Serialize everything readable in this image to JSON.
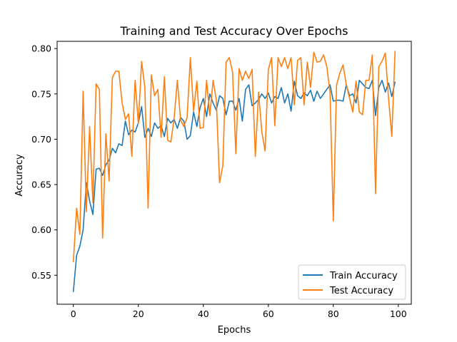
{
  "chart_data": {
    "type": "line",
    "title": "Training and Test Accuracy Over Epochs",
    "xlabel": "Epochs",
    "ylabel": "Accuracy",
    "xlim": [
      -5,
      104
    ],
    "ylim": [
      0.518,
      0.808
    ],
    "xticks": [
      0,
      20,
      40,
      60,
      80,
      100
    ],
    "yticks": [
      0.55,
      0.6,
      0.65,
      0.7,
      0.75,
      0.8
    ],
    "ytick_labels": [
      "0.55",
      "0.60",
      "0.65",
      "0.70",
      "0.75",
      "0.80"
    ],
    "grid": false,
    "legend_position": "lower-right",
    "x": [
      0,
      1,
      2,
      3,
      4,
      5,
      6,
      7,
      8,
      9,
      10,
      11,
      12,
      13,
      14,
      15,
      16,
      17,
      18,
      19,
      20,
      21,
      22,
      23,
      24,
      25,
      26,
      27,
      28,
      29,
      30,
      31,
      32,
      33,
      34,
      35,
      36,
      37,
      38,
      39,
      40,
      41,
      42,
      43,
      44,
      45,
      46,
      47,
      48,
      49,
      50,
      51,
      52,
      53,
      54,
      55,
      56,
      57,
      58,
      59,
      60,
      61,
      62,
      63,
      64,
      65,
      66,
      67,
      68,
      69,
      70,
      71,
      72,
      73,
      74,
      75,
      76,
      77,
      78,
      79,
      80,
      81,
      82,
      83,
      84,
      85,
      86,
      87,
      88,
      89,
      90,
      91,
      92,
      93,
      94,
      95,
      96,
      97,
      98,
      99
    ],
    "series": [
      {
        "name": "Train Accuracy",
        "color": "#1f77b4",
        "values": [
          0.532,
          0.572,
          0.582,
          0.6,
          0.652,
          0.632,
          0.617,
          0.667,
          0.668,
          0.66,
          0.672,
          0.677,
          0.69,
          0.685,
          0.695,
          0.693,
          0.72,
          0.705,
          0.71,
          0.708,
          0.718,
          0.736,
          0.702,
          0.712,
          0.703,
          0.718,
          0.712,
          0.715,
          0.703,
          0.723,
          0.718,
          0.722,
          0.712,
          0.724,
          0.72,
          0.7,
          0.704,
          0.73,
          0.714,
          0.735,
          0.745,
          0.725,
          0.75,
          0.74,
          0.732,
          0.748,
          0.745,
          0.727,
          0.742,
          0.742,
          0.732,
          0.745,
          0.72,
          0.755,
          0.76,
          0.737,
          0.74,
          0.744,
          0.75,
          0.745,
          0.751,
          0.74,
          0.747,
          0.745,
          0.757,
          0.74,
          0.75,
          0.731,
          0.764,
          0.748,
          0.745,
          0.751,
          0.748,
          0.754,
          0.742,
          0.753,
          0.745,
          0.75,
          0.755,
          0.76,
          0.742,
          0.743,
          0.743,
          0.742,
          0.76,
          0.748,
          0.75,
          0.74,
          0.765,
          0.761,
          0.757,
          0.756,
          0.765,
          0.726,
          0.757,
          0.765,
          0.752,
          0.762,
          0.747,
          0.763
        ]
      },
      {
        "name": "Test Accuracy",
        "color": "#ff7f0e",
        "values": [
          0.565,
          0.624,
          0.595,
          0.753,
          0.62,
          0.714,
          0.63,
          0.761,
          0.755,
          0.591,
          0.706,
          0.654,
          0.768,
          0.775,
          0.775,
          0.74,
          0.722,
          0.728,
          0.681,
          0.765,
          0.717,
          0.786,
          0.757,
          0.624,
          0.771,
          0.748,
          0.755,
          0.702,
          0.769,
          0.699,
          0.697,
          0.723,
          0.765,
          0.721,
          0.714,
          0.724,
          0.79,
          0.731,
          0.764,
          0.712,
          0.713,
          0.765,
          0.726,
          0.765,
          0.743,
          0.652,
          0.671,
          0.785,
          0.79,
          0.774,
          0.684,
          0.778,
          0.765,
          0.775,
          0.767,
          0.777,
          0.681,
          0.752,
          0.708,
          0.687,
          0.777,
          0.79,
          0.715,
          0.79,
          0.78,
          0.79,
          0.778,
          0.79,
          0.738,
          0.787,
          0.79,
          0.738,
          0.785,
          0.757,
          0.796,
          0.785,
          0.786,
          0.793,
          0.78,
          0.751,
          0.61,
          0.76,
          0.773,
          0.782,
          0.76,
          0.745,
          0.73,
          0.764,
          0.73,
          0.727,
          0.765,
          0.765,
          0.793,
          0.64,
          0.78,
          0.786,
          0.795,
          0.745,
          0.703,
          0.797
        ]
      }
    ]
  }
}
